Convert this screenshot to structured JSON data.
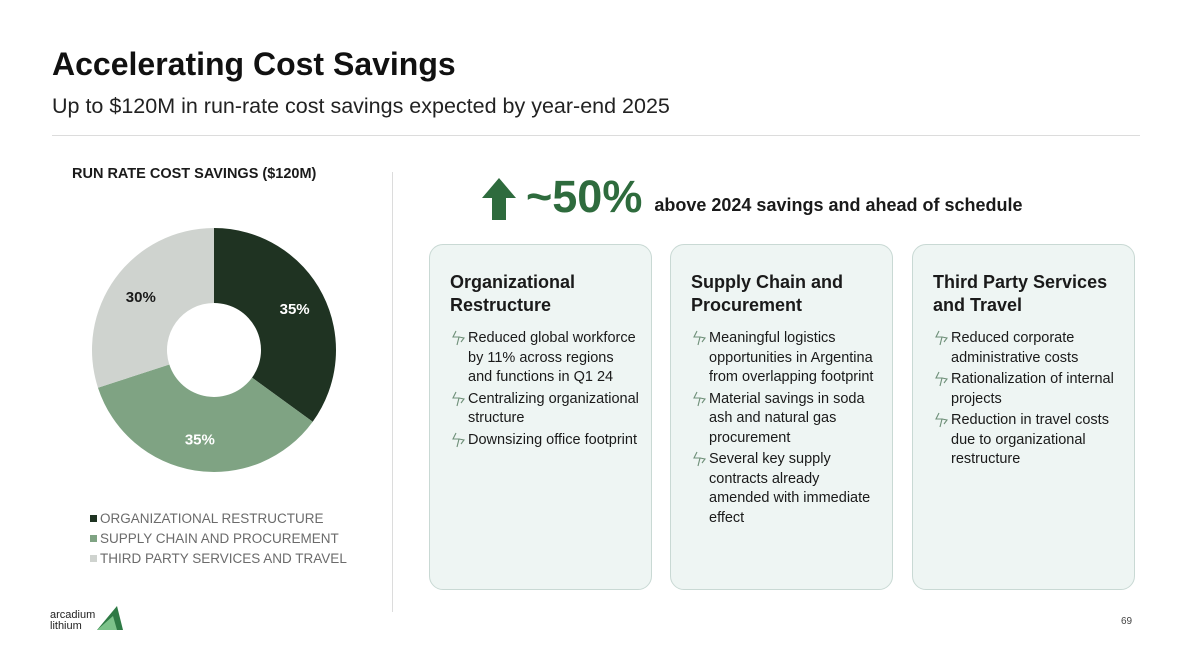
{
  "header": {
    "title": "Accelerating Cost Savings",
    "subtitle": "Up to $120M in run-rate cost savings expected by year-end 2025"
  },
  "chart_data": {
    "type": "pie",
    "title": "RUN RATE COST SAVINGS ($120M)",
    "categories": [
      "ORGANIZATIONAL RESTRUCTURE",
      "SUPPLY CHAIN AND PROCUREMENT",
      "THIRD PARTY SERVICES AND TRAVEL"
    ],
    "values": [
      35,
      35,
      30
    ],
    "labels": [
      "35%",
      "35%",
      "30%"
    ],
    "colors": [
      "#1f3322",
      "#7fa383",
      "#cfd3cf"
    ],
    "label_colors": [
      "#ffffff",
      "#ffffff",
      "#1a1a1a"
    ],
    "legend_position": "bottom-left"
  },
  "headline": {
    "arrow_icon": "up-arrow-icon",
    "percent": "~50%",
    "text": "above 2024 savings and ahead of schedule",
    "color": "#2e6b3d"
  },
  "cards": [
    {
      "title": "Organizational Restructure",
      "bullets": [
        "Reduced global workforce by 11% across regions and functions in Q1 24",
        "Centralizing organizational structure",
        "Downsizing office footprint"
      ]
    },
    {
      "title": "Supply Chain and Procurement",
      "bullets": [
        "Meaningful logistics opportunities in Argentina from overlapping footprint",
        "Material savings in soda ash and natural gas procurement",
        "Several key supply contracts already amended with immediate effect"
      ]
    },
    {
      "title": "Third Party Services and Travel",
      "bullets": [
        "Reduced corporate administrative costs",
        "Rationalization of internal projects",
        "Reduction in travel costs due to organizational restructure"
      ]
    }
  ],
  "footer": {
    "logo_line1": "arcadium",
    "logo_line2": "lithium",
    "page_number": "69"
  }
}
